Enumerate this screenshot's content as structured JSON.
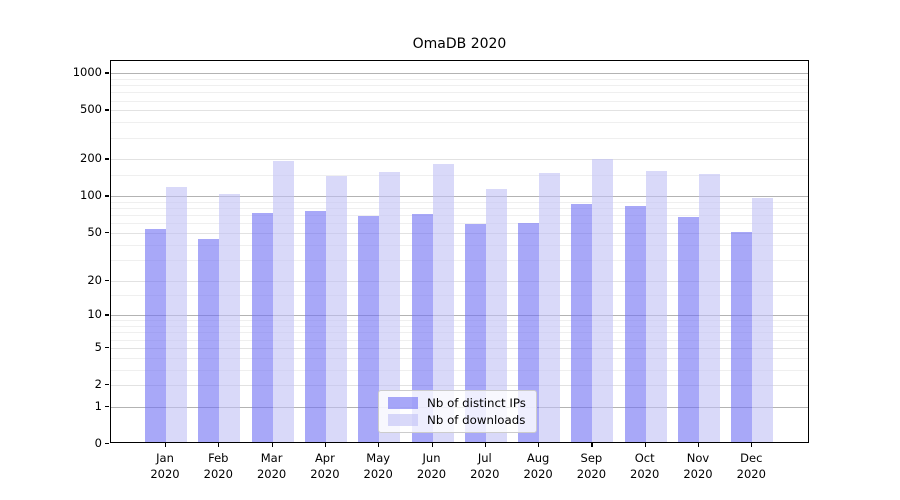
{
  "chart_data": {
    "type": "bar",
    "title": "OmaDB 2020",
    "categories": [
      "Jan",
      "Feb",
      "Mar",
      "Apr",
      "May",
      "Jun",
      "Jul",
      "Aug",
      "Sep",
      "Oct",
      "Nov",
      "Dec"
    ],
    "category_year": "2020",
    "series": [
      {
        "name": "Nb of distinct IPs",
        "color": "#a8a8f5",
        "color_rgba": "rgba(110,110,243,0.6)",
        "values": [
          52,
          43,
          70,
          73,
          67,
          69,
          57,
          58,
          83,
          81,
          65,
          49
        ]
      },
      {
        "name": "Nb of downloads",
        "color": "#d9d9f8",
        "color_rgba": "rgba(192,192,245,0.6)",
        "values": [
          114,
          100,
          186,
          142,
          151,
          178,
          110,
          150,
          195,
          156,
          146,
          93
        ]
      }
    ],
    "yscale": "log1p",
    "ylim": [
      0,
      1259
    ],
    "y_ticks": [
      0,
      1,
      2,
      5,
      10,
      20,
      50,
      100,
      200,
      500,
      1000
    ],
    "y_decade_ticks": [
      1,
      10,
      100,
      1000
    ],
    "y_minor_ticks": [
      3,
      4,
      6,
      7,
      8,
      9,
      15,
      30,
      40,
      60,
      70,
      80,
      90,
      150,
      300,
      400,
      600,
      700,
      800,
      900
    ],
    "xlabel": "",
    "ylabel": "",
    "grid": true,
    "legend_position": "lower-center",
    "colors": {
      "grid_major": "#b3b3b3",
      "grid_mid": "#e2e2e2",
      "grid_minor": "#efefef",
      "spine": "#000000",
      "text": "#000000",
      "background": "#ffffff"
    }
  }
}
